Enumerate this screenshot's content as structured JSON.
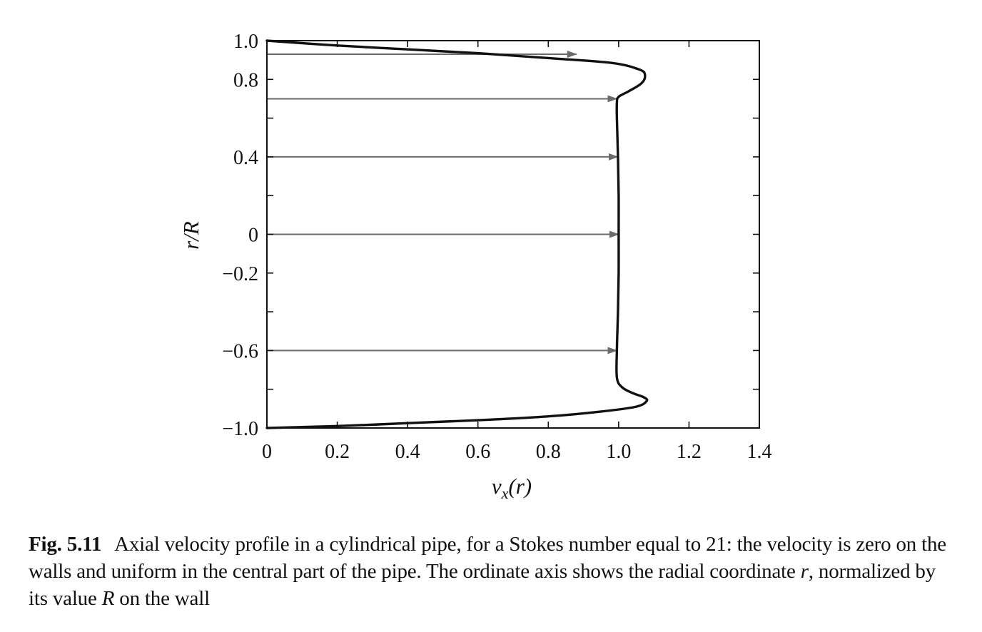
{
  "chart_data": {
    "type": "line",
    "xlabel": {
      "var": "v",
      "sub": "x",
      "arg": "(r)"
    },
    "ylabel": "r/R",
    "xlim": [
      0,
      1.4
    ],
    "ylim": [
      -1.0,
      1.0
    ],
    "x_ticks": [
      0,
      0.2,
      0.4,
      0.6,
      0.8,
      1.0,
      1.2,
      1.4
    ],
    "x_tick_labels": [
      "0",
      "0.2",
      "0.4",
      "0.6",
      "0.8",
      "1.0",
      "1.2",
      "1.4"
    ],
    "y_ticks": [
      -1.0,
      -0.8,
      -0.6,
      -0.4,
      -0.2,
      0,
      0.2,
      0.4,
      0.6,
      0.8,
      1.0
    ],
    "y_tick_labels": [
      {
        "value": 1.0,
        "label": "1.0"
      },
      {
        "value": 0.8,
        "label": "0.8"
      },
      {
        "value": 0.4,
        "label": "0.4"
      },
      {
        "value": 0,
        "label": "0"
      },
      {
        "value": -0.2,
        "label": "−0.2"
      },
      {
        "value": -0.6,
        "label": "−0.6"
      },
      {
        "value": -1.0,
        "label": "−1.0"
      }
    ],
    "grid": false,
    "series": [
      {
        "color": "#111111",
        "points": [
          [
            0,
            -1.0
          ],
          [
            0.2,
            -0.99
          ],
          [
            0.4,
            -0.975
          ],
          [
            0.6,
            -0.96
          ],
          [
            0.8,
            -0.94
          ],
          [
            0.95,
            -0.915
          ],
          [
            1.05,
            -0.89
          ],
          [
            1.08,
            -0.86
          ],
          [
            1.07,
            -0.84
          ],
          [
            1.04,
            -0.82
          ],
          [
            1.01,
            -0.79
          ],
          [
            0.995,
            -0.74
          ],
          [
            0.995,
            -0.6
          ],
          [
            0.998,
            -0.4
          ],
          [
            1.0,
            -0.2
          ],
          [
            1.0,
            0
          ],
          [
            1.0,
            0.2
          ],
          [
            0.998,
            0.4
          ],
          [
            0.995,
            0.6
          ],
          [
            0.995,
            0.68
          ],
          [
            1.0,
            0.71
          ],
          [
            1.03,
            0.74
          ],
          [
            1.065,
            0.78
          ],
          [
            1.075,
            0.82
          ],
          [
            1.06,
            0.85
          ],
          [
            0.98,
            0.885
          ],
          [
            0.8,
            0.91
          ],
          [
            0.6,
            0.935
          ],
          [
            0.4,
            0.955
          ],
          [
            0.2,
            0.975
          ],
          [
            0,
            1.0
          ]
        ]
      }
    ],
    "arrows": [
      {
        "r": 0.93,
        "v": 0.88
      },
      {
        "r": 0.7,
        "v": 0.995
      },
      {
        "r": 0.4,
        "v": 0.998
      },
      {
        "r": 0.0,
        "v": 1.0
      },
      {
        "r": -0.6,
        "v": 0.995
      }
    ],
    "arrow_color": "#6b6b6b"
  },
  "caption": {
    "label": "Fig. 5.11",
    "part1": "Axial velocity profile in a cylindrical pipe, for a Stokes number equal to 21: the velocity is zero on the walls and uniform in the central part of the pipe. The ordinate axis shows the radial coordinate ",
    "r": "r",
    "part2": ", normalized by its value ",
    "R": "R",
    "part3": " on the wall"
  }
}
